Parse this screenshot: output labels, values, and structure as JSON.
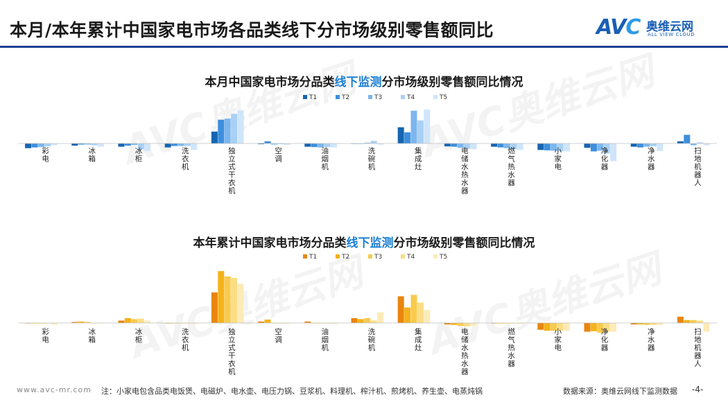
{
  "page": {
    "title": "本月/本年累计中国家电市场各品类线下分市场级别零售额同比",
    "logo": {
      "mark": "AVC",
      "cn": "奥维云网",
      "en": "ALL VIEW CLOUD"
    },
    "watermark": {
      "mark": "AVC奥维云网",
      "en": "ALL VIEW CLOUD"
    },
    "footer": {
      "url": "www.avc-mr.com",
      "note": "注：小家电包含品类电饭煲、电磁炉、电水壶、电压力锅、豆浆机、料理机、榨汁机、煎烤机、养生壶、电蒸炖锅",
      "source": "数据来源：奥维云网线下监测数据",
      "page_number": "-4-"
    }
  },
  "chart_data": [
    {
      "type": "bar",
      "title_parts": [
        "本月中国家电市场分品类",
        "线下监测",
        "分市场级别零售额同比情况"
      ],
      "title": "本月中国家电市场分品类线下监测分市场级别零售额同比情况",
      "categories": [
        "彩电",
        "冰箱",
        "冰柜",
        "洗衣机",
        "独立式干衣机",
        "空调",
        "油烟机",
        "洗碗机",
        "集成灶",
        "电储水热水器",
        "燃气热水器",
        "小家电",
        "净化器",
        "净水器",
        "扫地机器人"
      ],
      "legend_position": "top-center",
      "grid": false,
      "ylim": [
        -0.6,
        1.0
      ],
      "colors": [
        "#1565b0",
        "#3d8fdd",
        "#7cb6ee",
        "#a9d0f5",
        "#cfe5fa"
      ],
      "series": [
        {
          "name": "T1",
          "values": [
            -0.13,
            -0.06,
            -0.09,
            -0.11,
            0.33,
            -0.02,
            -0.09,
            -0.01,
            0.45,
            -0.08,
            -0.09,
            -0.18,
            -0.12,
            -0.09,
            0.06
          ]
        },
        {
          "name": "T2",
          "values": [
            -0.11,
            -0.03,
            -0.06,
            -0.07,
            0.66,
            0.06,
            -0.1,
            -0.01,
            0.31,
            -0.09,
            -0.11,
            -0.19,
            -0.22,
            -0.11,
            0.24
          ]
        },
        {
          "name": "T3",
          "values": [
            -0.1,
            -0.03,
            -0.04,
            -0.07,
            0.69,
            -0.03,
            -0.11,
            0.02,
            0.91,
            -0.12,
            -0.13,
            -0.2,
            -0.2,
            -0.09,
            -0.05
          ]
        },
        {
          "name": "T4",
          "values": [
            -0.08,
            -0.05,
            -0.16,
            -0.07,
            0.82,
            -0.02,
            -0.1,
            0.07,
            0.64,
            -0.15,
            -0.16,
            -0.22,
            -0.28,
            -0.08,
            0.03
          ]
        },
        {
          "name": "T5",
          "values": [
            -0.05,
            -0.09,
            -0.21,
            -0.18,
            0.92,
            -0.04,
            -0.11,
            -0.03,
            0.94,
            -0.16,
            -0.18,
            -0.22,
            -0.49,
            -0.21,
            -0.05
          ]
        }
      ]
    },
    {
      "type": "bar",
      "title_parts": [
        "本年累计中国家电市场分品类",
        "线下监测",
        "分市场级别零售额同比情况"
      ],
      "title": "本年累计中国家电市场分品类线下监测分市场级别零售额同比情况",
      "categories": [
        "彩电",
        "冰箱",
        "冰柜",
        "洗衣机",
        "独立式干衣机",
        "空调",
        "油烟机",
        "洗碗机",
        "集成灶",
        "电储水热水器",
        "燃气热水器",
        "小家电",
        "净化器",
        "净水器",
        "扫地机器人"
      ],
      "legend_position": "top-center",
      "grid": false,
      "ylim": [
        -0.6,
        1.2
      ],
      "colors": [
        "#e8860f",
        "#f5b21a",
        "#f8cb4e",
        "#fbdd85",
        "#fcebb8"
      ],
      "series": [
        {
          "name": "T1",
          "values": [
            -0.01,
            0.02,
            0.05,
            -0.01,
            0.63,
            0.03,
            0.03,
            0.1,
            0.55,
            -0.03,
            -0.01,
            -0.14,
            -0.18,
            -0.03,
            0.13
          ]
        },
        {
          "name": "T2",
          "values": [
            -0.01,
            0.03,
            0.1,
            0.0,
            1.07,
            0.07,
            0.0,
            0.08,
            0.32,
            -0.04,
            -0.01,
            -0.16,
            -0.17,
            -0.03,
            0.06
          ]
        },
        {
          "name": "T3",
          "values": [
            -0.01,
            0.02,
            0.08,
            0.0,
            0.96,
            0.0,
            -0.01,
            0.1,
            0.58,
            -0.06,
            -0.01,
            -0.16,
            -0.2,
            -0.04,
            0.06
          ]
        },
        {
          "name": "T4",
          "values": [
            -0.01,
            0.0,
            0.09,
            -0.01,
            0.93,
            -0.01,
            -0.01,
            0.05,
            0.42,
            -0.07,
            -0.01,
            -0.16,
            -0.18,
            -0.04,
            0.05
          ]
        },
        {
          "name": "T5",
          "values": [
            -0.03,
            -0.01,
            0.05,
            -0.02,
            0.81,
            -0.02,
            -0.02,
            0.22,
            0.27,
            -0.06,
            -0.02,
            -0.16,
            -0.18,
            -0.04,
            -0.18
          ]
        }
      ]
    }
  ]
}
